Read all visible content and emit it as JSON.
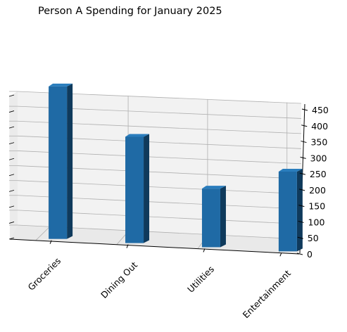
{
  "chart_data": {
    "type": "bar",
    "title": "Person A Spending for January 2025",
    "categories": [
      "Groceries",
      "Dining Out",
      "Utilities",
      "Entertainment"
    ],
    "values": [
      450,
      320,
      180,
      250
    ],
    "zlim": [
      0,
      450
    ],
    "zticks": [
      0,
      50,
      100,
      150,
      200,
      250,
      300,
      350,
      400,
      450
    ],
    "grid": true,
    "colors": {
      "bar_front": "#1f6aa5",
      "bar_side": "#0f3a5c",
      "bar_top": "#2a7dbd",
      "pane": "#f2f2f2",
      "grid": "#b0b0b0"
    }
  }
}
